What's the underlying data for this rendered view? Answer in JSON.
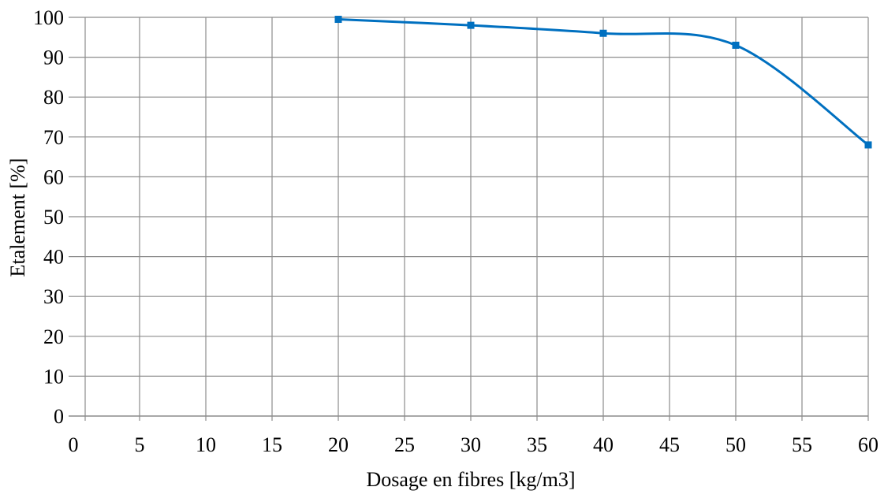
{
  "chart_data": {
    "type": "line",
    "smooth": true,
    "title": "",
    "xlabel": "Dosage en fibres [kg/m3]",
    "ylabel": "Etalement [%]",
    "xlim": [
      0,
      60
    ],
    "ylim": [
      0,
      100
    ],
    "x_ticks": [
      "0",
      "5",
      "10",
      "15",
      "20",
      "25",
      "30",
      "35",
      "40",
      "45",
      "50",
      "55",
      "60"
    ],
    "y_ticks": [
      "0",
      "10",
      "20",
      "30",
      "40",
      "50",
      "60",
      "70",
      "80",
      "90",
      "100"
    ],
    "grid": true,
    "legend": "none",
    "series": [
      {
        "x": [
          20,
          30,
          40,
          50,
          60
        ],
        "y": [
          99.5,
          98,
          96,
          93,
          68
        ],
        "color": "#0070C0",
        "marker": "square"
      }
    ],
    "colors": {
      "grid": "#8c8c8c",
      "axis": "#8c8c8c",
      "line": "#0070C0"
    }
  }
}
